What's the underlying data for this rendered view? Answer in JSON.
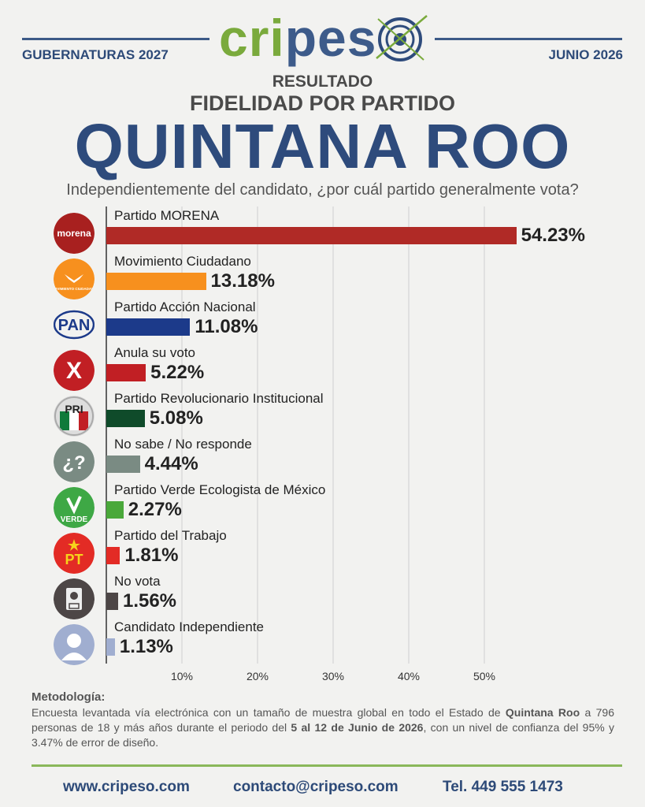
{
  "header": {
    "left_label": "GUBERNATURAS 2027",
    "right_label": "JUNIO 2026",
    "brand_a": "cri",
    "brand_b": "pes",
    "colors": {
      "navy": "#2e4b7c",
      "green": "#7aaa3c"
    }
  },
  "title": {
    "kicker": "RESULTADO",
    "subtitle": "FIDELIDAD POR PARTIDO",
    "main": "QUINTANA ROO",
    "question": "Independientemente del candidato, ¿por cuál partido generalmente vota?"
  },
  "chart_data": {
    "type": "bar",
    "orientation": "horizontal",
    "categories": [
      "Partido MORENA",
      "Movimiento Ciudadano",
      "Partido Acción Nacional",
      "Anula su voto",
      "Partido Revolucionario Institucional",
      "No sabe / No responde",
      "Partido Verde Ecologista de México",
      "Partido del Trabajo",
      "No vota",
      "Candidato Independiente"
    ],
    "values": [
      54.23,
      13.18,
      11.08,
      5.22,
      5.08,
      4.44,
      2.27,
      1.81,
      1.56,
      1.13
    ],
    "value_labels": [
      "54.23%",
      "13.18%",
      "11.08%",
      "5.22%",
      "5.08%",
      "4.44%",
      "2.27%",
      "1.81%",
      "1.56%",
      "1.13%"
    ],
    "colors": [
      "#b02a26",
      "#f7901e",
      "#1c3a8a",
      "#c11f24",
      "#0f4b2a",
      "#7a8b83",
      "#4aa83a",
      "#e32b25",
      "#4d4646",
      "#a0aed0"
    ],
    "icons": [
      "morena-logo",
      "mc-logo",
      "pan-logo",
      "x-mark-icon",
      "pri-logo",
      "question-icon",
      "verde-logo",
      "pt-logo",
      "ballot-icon",
      "person-icon"
    ],
    "icon_text": [
      "morena",
      "MOVIMIENTO CIUDADANO",
      "PAN",
      "X",
      "PRI",
      "¿?",
      "VERDE",
      "PT",
      "",
      ""
    ],
    "x_ticks": [
      10,
      20,
      30,
      40,
      50
    ],
    "x_tick_labels": [
      "10%",
      "20%",
      "30%",
      "40%",
      "50%"
    ],
    "xlim": [
      0,
      58
    ],
    "grid": true
  },
  "methodology": {
    "title": "Metodología:",
    "text_1": "Encuesta levantada vía electrónica con un tamaño de muestra global en todo el Estado de ",
    "bold_1": "Quintana Roo",
    "text_2": " a 796 personas de 18 y más años durante el periodo del ",
    "bold_2": "5 al 12 de Junio de 2026",
    "text_3": ", con un nivel de confianza del 95% y 3.47% de error de diseño."
  },
  "footer": {
    "website": "www.cripeso.com",
    "email": "contacto@cripeso.com",
    "phone": "Tel. 449 555 1473"
  }
}
